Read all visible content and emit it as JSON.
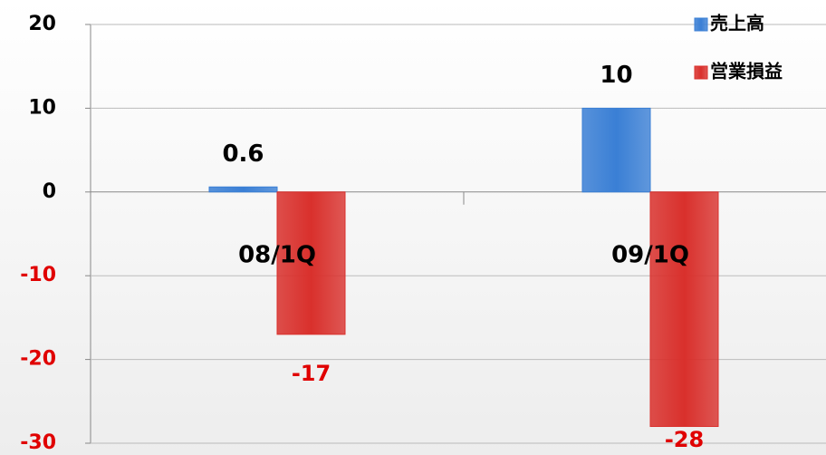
{
  "chart_data": {
    "type": "bar",
    "categories": [
      "08/1Q",
      "09/1Q"
    ],
    "series": [
      {
        "name": "売上高",
        "color": "#3a7fd5",
        "values": [
          0.6,
          10
        ]
      },
      {
        "name": "営業損益",
        "color": "#d9302c",
        "values": [
          -17,
          -28
        ]
      }
    ],
    "ylim": [
      -30,
      20
    ],
    "yticks": [
      20,
      10,
      0,
      -10,
      -20,
      -30
    ],
    "grid": true,
    "legend": "top-right"
  }
}
